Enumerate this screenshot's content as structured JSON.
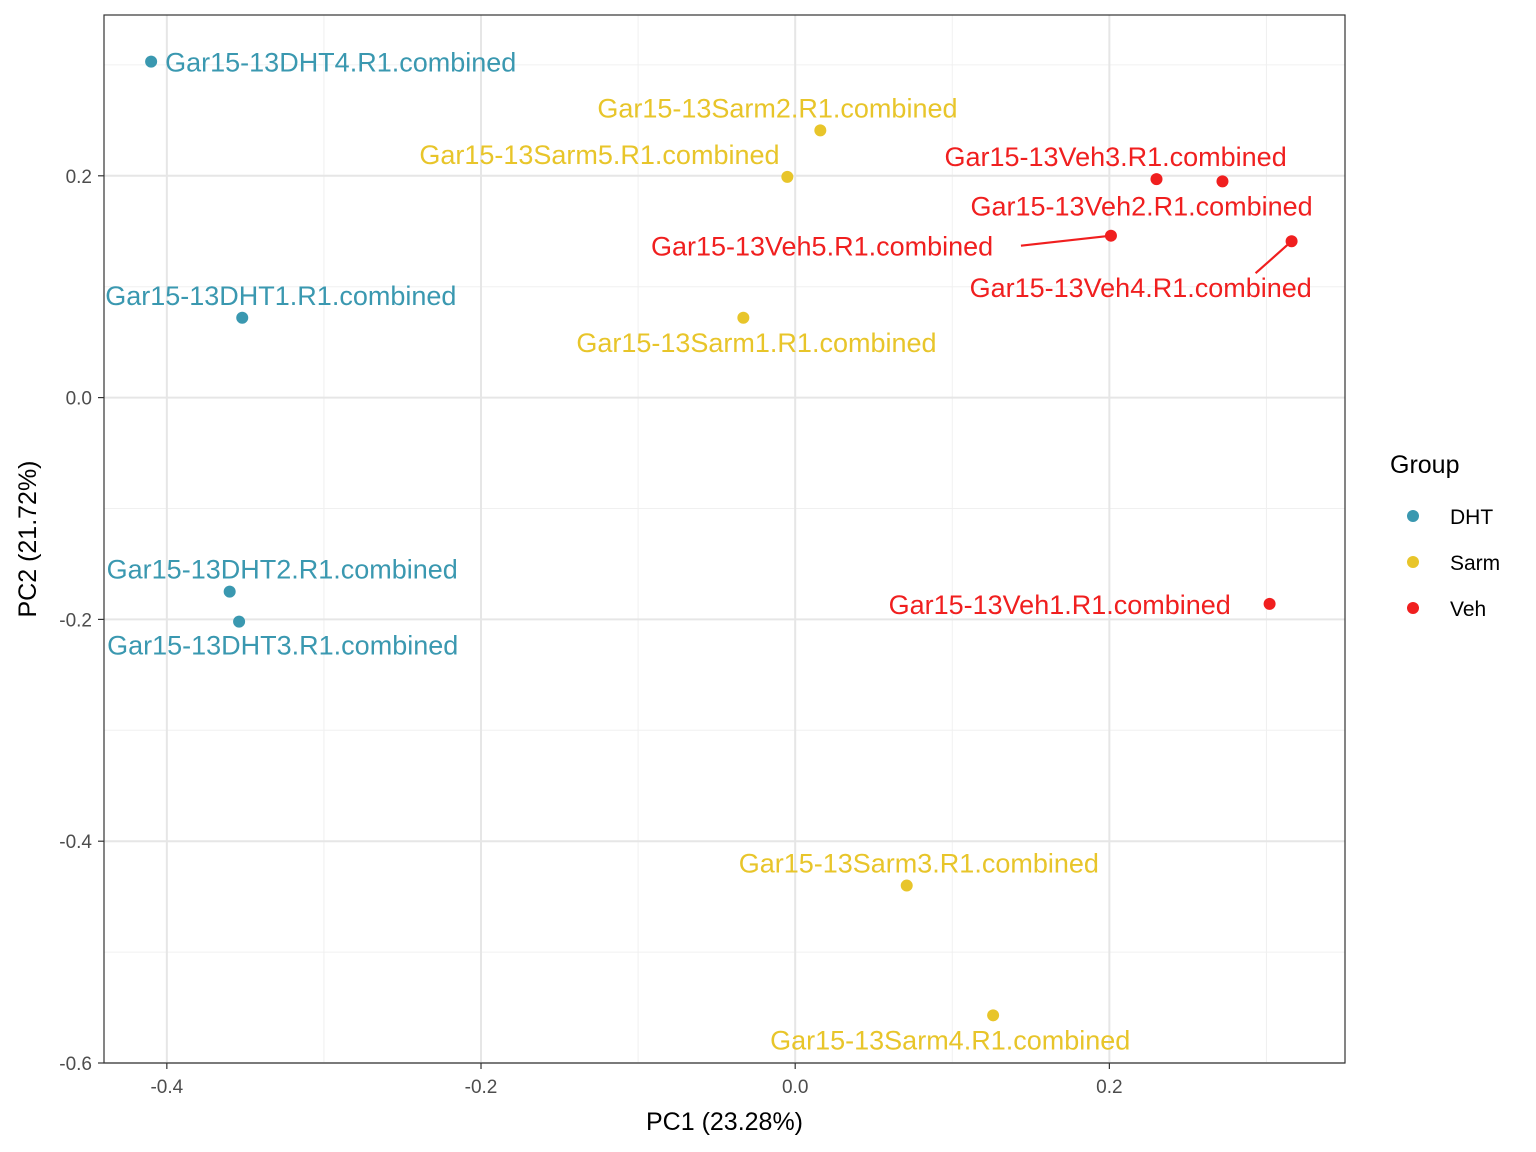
{
  "chart_data": {
    "type": "scatter",
    "xlabel": "PC1 (23.28%)",
    "ylabel": "PC2 (21.72%)",
    "xlim": [
      -0.44,
      0.35
    ],
    "ylim": [
      -0.6,
      0.345
    ],
    "x_ticks": [
      -0.4,
      -0.2,
      0.0,
      0.2
    ],
    "x_tick_labels": [
      "-0.4",
      "-0.2",
      "0.0",
      "0.2"
    ],
    "y_ticks": [
      -0.6,
      -0.4,
      -0.2,
      0.0,
      0.2
    ],
    "y_tick_labels": [
      "-0.6",
      "-0.4",
      "-0.2",
      "0.0",
      "0.2"
    ],
    "grid": true,
    "legend": {
      "title": "Group",
      "position": "right",
      "entries": [
        {
          "name": "DHT",
          "color": "#3a98b0"
        },
        {
          "name": "Sarm",
          "color": "#e8c52a"
        },
        {
          "name": "Veh",
          "color": "#f01f1f"
        }
      ]
    },
    "points": [
      {
        "label": "Gar15-13DHT4.R1.combined",
        "group": "DHT",
        "x": -0.41,
        "y": 0.303
      },
      {
        "label": "Gar15-13DHT1.R1.combined",
        "group": "DHT",
        "x": -0.352,
        "y": 0.072
      },
      {
        "label": "Gar15-13DHT2.R1.combined",
        "group": "DHT",
        "x": -0.36,
        "y": -0.175
      },
      {
        "label": "Gar15-13DHT3.R1.combined",
        "group": "DHT",
        "x": -0.354,
        "y": -0.202
      },
      {
        "label": "Gar15-13Sarm2.R1.combined",
        "group": "Sarm",
        "x": 0.016,
        "y": 0.241
      },
      {
        "label": "Gar15-13Sarm5.R1.combined",
        "group": "Sarm",
        "x": -0.005,
        "y": 0.199
      },
      {
        "label": "Gar15-13Sarm1.R1.combined",
        "group": "Sarm",
        "x": -0.033,
        "y": 0.072
      },
      {
        "label": "Gar15-13Sarm3.R1.combined",
        "group": "Sarm",
        "x": 0.071,
        "y": -0.44
      },
      {
        "label": "Gar15-13Sarm4.R1.combined",
        "group": "Sarm",
        "x": 0.126,
        "y": -0.557
      },
      {
        "label": "Gar15-13Veh3.R1.combined",
        "group": "Veh",
        "x": 0.23,
        "y": 0.197
      },
      {
        "label": "Gar15-13Veh2.R1.combined",
        "group": "Veh",
        "x": 0.272,
        "y": 0.195
      },
      {
        "label": "Gar15-13Veh5.R1.combined",
        "group": "Veh",
        "x": 0.201,
        "y": 0.146
      },
      {
        "label": "Gar15-13Veh4.R1.combined",
        "group": "Veh",
        "x": 0.316,
        "y": 0.141
      },
      {
        "label": "Gar15-13Veh1.R1.combined",
        "group": "Veh",
        "x": 0.302,
        "y": -0.186
      }
    ]
  }
}
